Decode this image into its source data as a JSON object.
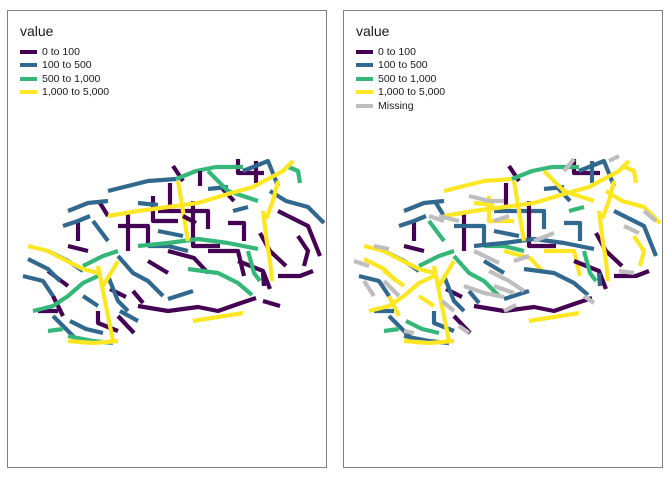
{
  "panels": [
    {
      "id": "left",
      "legend": {
        "title": "value",
        "items": [
          {
            "label": "0 to 100",
            "color": "#440154"
          },
          {
            "label": "100 to 500",
            "color": "#31688E"
          },
          {
            "label": "500 to 1,000",
            "color": "#35B779"
          },
          {
            "label": "1,000 to 5,000",
            "color": "#FDE725"
          }
        ]
      }
    },
    {
      "id": "right",
      "legend": {
        "title": "value",
        "items": [
          {
            "label": "0 to 100",
            "color": "#440154"
          },
          {
            "label": "100 to 500",
            "color": "#31688E"
          },
          {
            "label": "500 to 1,000",
            "color": "#35B779"
          },
          {
            "label": "1,000 to 5,000",
            "color": "#FDE725"
          },
          {
            "label": "Missing",
            "color": "#BEBEBE"
          }
        ]
      }
    }
  ]
}
